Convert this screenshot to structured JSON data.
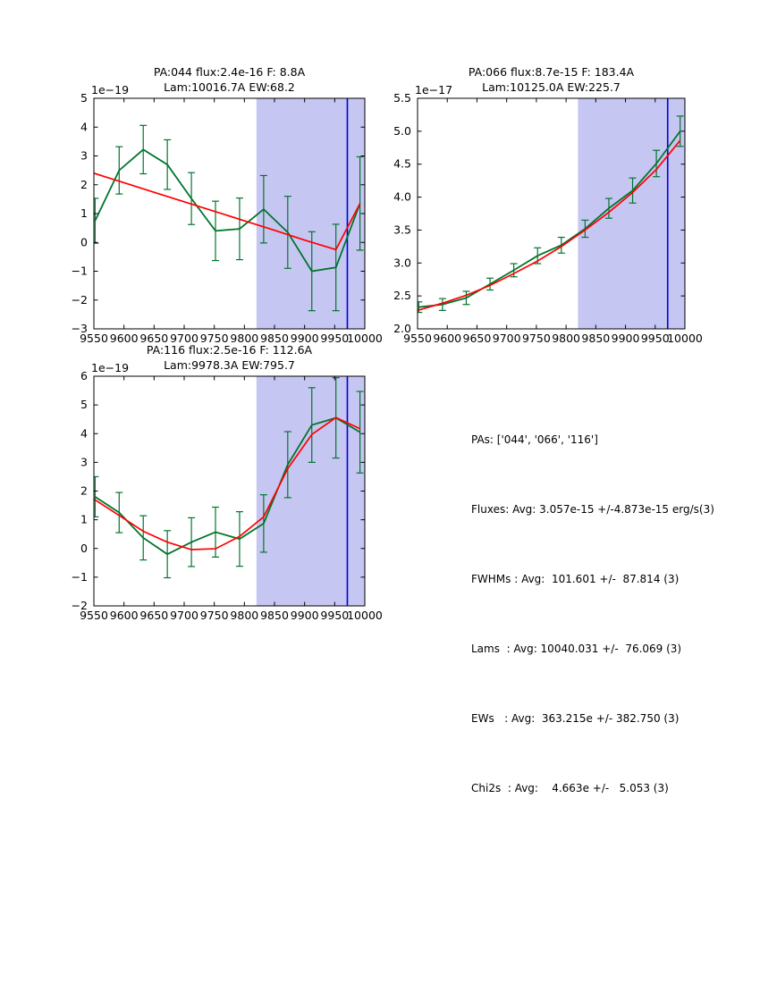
{
  "colors": {
    "background": "#ffffff",
    "data_line": "#00752e",
    "fit_line": "#ff0000",
    "span_fill": "#c6c6f2",
    "vline": "#0000dd",
    "axis": "#000000",
    "text": "#000000"
  },
  "chart_data": [
    {
      "type": "line",
      "title_line1": "PA:044 flux:2.4e-16 F: 8.8A",
      "title_line2": "Lam:10016.7A EW:68.2",
      "y_offset_label": "1e−19",
      "xlim": [
        9550,
        10000
      ],
      "ylim": [
        -3,
        5
      ],
      "grid": false,
      "legend": "none",
      "xtick_values": [
        9550,
        9600,
        9650,
        9700,
        9750,
        9800,
        9850,
        9900,
        9950,
        10000
      ],
      "xtick_labels": [
        "9550",
        "9600",
        "9650",
        "9700",
        "9750",
        "9800",
        "9850",
        "9900",
        "9950",
        "10000"
      ],
      "ytick_values": [
        -3,
        -2,
        -1,
        0,
        1,
        2,
        3,
        4,
        5
      ],
      "ytick_labels": [
        "−3",
        "−2",
        "−1",
        "0",
        "1",
        "2",
        "3",
        "4",
        "5"
      ],
      "span": [
        9820,
        10000
      ],
      "vline_x": 9971,
      "series": [
        {
          "name": "spectrum-data",
          "color_key": "data_line",
          "x": [
            9552,
            9592,
            9632,
            9672,
            9712,
            9752,
            9792,
            9832,
            9872,
            9912,
            9952,
            9992
          ],
          "y": [
            0.75,
            2.5,
            3.22,
            2.7,
            1.52,
            0.4,
            0.47,
            1.15,
            0.35,
            -1.0,
            -0.87,
            1.35
          ],
          "yerr": [
            0.78,
            0.82,
            0.84,
            0.86,
            0.9,
            1.03,
            1.07,
            1.17,
            1.25,
            1.37,
            1.5,
            1.62
          ]
        },
        {
          "name": "model-fit",
          "color_key": "fit_line",
          "x": [
            9550,
            9600,
            9650,
            9700,
            9750,
            9800,
            9850,
            9900,
            9952,
            9992
          ],
          "y": [
            2.4,
            2.07,
            1.74,
            1.41,
            1.08,
            0.75,
            0.42,
            0.08,
            -0.25,
            1.35
          ]
        }
      ]
    },
    {
      "type": "line",
      "title_line1": "PA:066 flux:8.7e-15 F: 183.4A",
      "title_line2": "Lam:10125.0A EW:225.7",
      "y_offset_label": "1e−17",
      "xlim": [
        9550,
        10000
      ],
      "ylim": [
        2.0,
        5.5
      ],
      "grid": false,
      "legend": "none",
      "xtick_values": [
        9550,
        9600,
        9650,
        9700,
        9750,
        9800,
        9850,
        9900,
        9950,
        10000
      ],
      "xtick_labels": [
        "9550",
        "9600",
        "9650",
        "9700",
        "9750",
        "9800",
        "9850",
        "9900",
        "9950",
        "10000"
      ],
      "ytick_values": [
        2.0,
        2.5,
        3.0,
        3.5,
        4.0,
        4.5,
        5.0,
        5.5
      ],
      "ytick_labels": [
        "2.0",
        "2.5",
        "3.0",
        "3.5",
        "4.0",
        "4.5",
        "5.0",
        "5.5"
      ],
      "span": [
        9820,
        10000
      ],
      "vline_x": 9971,
      "series": [
        {
          "name": "spectrum-data",
          "color_key": "data_line",
          "x": [
            9552,
            9592,
            9632,
            9672,
            9712,
            9752,
            9792,
            9832,
            9872,
            9912,
            9952,
            9992
          ],
          "y": [
            2.33,
            2.37,
            2.47,
            2.68,
            2.89,
            3.11,
            3.27,
            3.52,
            3.83,
            4.1,
            4.51,
            5.0
          ],
          "yerr": [
            0.08,
            0.09,
            0.1,
            0.09,
            0.1,
            0.12,
            0.12,
            0.13,
            0.15,
            0.19,
            0.2,
            0.23
          ]
        },
        {
          "name": "model-fit",
          "color_key": "fit_line",
          "x": [
            9550,
            9592,
            9632,
            9672,
            9712,
            9752,
            9792,
            9832,
            9872,
            9912,
            9952,
            9992
          ],
          "y": [
            2.28,
            2.39,
            2.51,
            2.66,
            2.84,
            3.03,
            3.25,
            3.5,
            3.77,
            4.07,
            4.42,
            4.86
          ]
        }
      ]
    },
    {
      "type": "line",
      "title_line1": "PA:116 flux:2.5e-16 F: 112.6A",
      "title_line2": "Lam:9978.3A EW:795.7",
      "y_offset_label": "1e−19",
      "xlim": [
        9550,
        10000
      ],
      "ylim": [
        -2,
        6
      ],
      "grid": false,
      "legend": "none",
      "xtick_values": [
        9550,
        9600,
        9650,
        9700,
        9750,
        9800,
        9850,
        9900,
        9950,
        10000
      ],
      "xtick_labels": [
        "9550",
        "9600",
        "9650",
        "9700",
        "9750",
        "9800",
        "9850",
        "9900",
        "9950",
        "10000"
      ],
      "ytick_values": [
        -2,
        -1,
        0,
        1,
        2,
        3,
        4,
        5,
        6
      ],
      "ytick_labels": [
        "−2",
        "−1",
        "0",
        "1",
        "2",
        "3",
        "4",
        "5",
        "6"
      ],
      "span": [
        9820,
        10000
      ],
      "vline_x": 9971,
      "series": [
        {
          "name": "spectrum-data",
          "color_key": "data_line",
          "x": [
            9552,
            9592,
            9632,
            9672,
            9712,
            9752,
            9792,
            9832,
            9872,
            9912,
            9952,
            9992
          ],
          "y": [
            1.8,
            1.25,
            0.37,
            -0.2,
            0.22,
            0.57,
            0.33,
            0.87,
            2.92,
            4.3,
            4.55,
            4.05
          ],
          "yerr": [
            0.7,
            0.7,
            0.77,
            0.82,
            0.85,
            0.87,
            0.95,
            1.0,
            1.15,
            1.3,
            1.4,
            1.42
          ]
        },
        {
          "name": "model-fit",
          "color_key": "fit_line",
          "x": [
            9550,
            9592,
            9632,
            9672,
            9712,
            9752,
            9792,
            9832,
            9872,
            9912,
            9952,
            9992
          ],
          "y": [
            1.72,
            1.15,
            0.6,
            0.22,
            -0.04,
            -0.01,
            0.42,
            1.1,
            2.78,
            3.97,
            4.56,
            4.17
          ]
        }
      ]
    }
  ],
  "stats_panel": {
    "lines": [
      "PAs: ['044', '066', '116']",
      "Fluxes: Avg: 3.057e-15 +/-4.873e-15 erg/s(3)",
      "FWHMs : Avg:  101.601 +/-  87.814 (3)",
      "Lams  : Avg: 10040.031 +/-  76.069 (3)",
      "EWs   : Avg:  363.215e +/- 382.750 (3)",
      "Chi2s  : Avg:    4.663e +/-   5.053 (3)"
    ]
  }
}
